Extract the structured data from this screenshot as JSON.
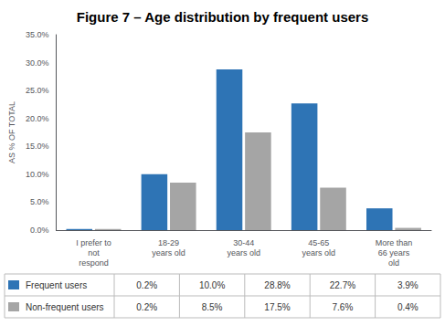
{
  "chart_data": {
    "type": "bar",
    "title": "Figure 7 – Age distribution by frequent users",
    "categories": [
      "I prefer to\nnot\nrespond",
      "18-29\nyears old",
      "30-44\nyears old",
      "45-65\nyears old",
      "More than\n66 years\nold"
    ],
    "series": [
      {
        "name": "Frequent users",
        "color": "#2E74B5",
        "values": [
          0.2,
          10.0,
          28.8,
          22.7,
          3.9
        ],
        "value_labels": [
          "0.2%",
          "10.0%",
          "28.8%",
          "22.7%",
          "3.9%"
        ]
      },
      {
        "name": "Non-frequent users",
        "color": "#A5A5A5",
        "values": [
          0.2,
          8.5,
          17.5,
          7.6,
          0.4
        ],
        "value_labels": [
          "0.2%",
          "8.5%",
          "17.5%",
          "7.6%",
          "0.4%"
        ]
      }
    ],
    "ylabel": "AS % OF TOTAL",
    "ylim": [
      0,
      35
    ],
    "yticks": [
      {
        "value": 0,
        "label": "0.0%"
      },
      {
        "value": 5,
        "label": "5.0%"
      },
      {
        "value": 10,
        "label": "10.0%"
      },
      {
        "value": 15,
        "label": "15.0%"
      },
      {
        "value": 20,
        "label": "20.0%"
      },
      {
        "value": 25,
        "label": "25.0%"
      },
      {
        "value": 30,
        "label": "30.0%"
      },
      {
        "value": 35,
        "label": "35.0%"
      }
    ],
    "grid": false,
    "legend": "bottom"
  }
}
